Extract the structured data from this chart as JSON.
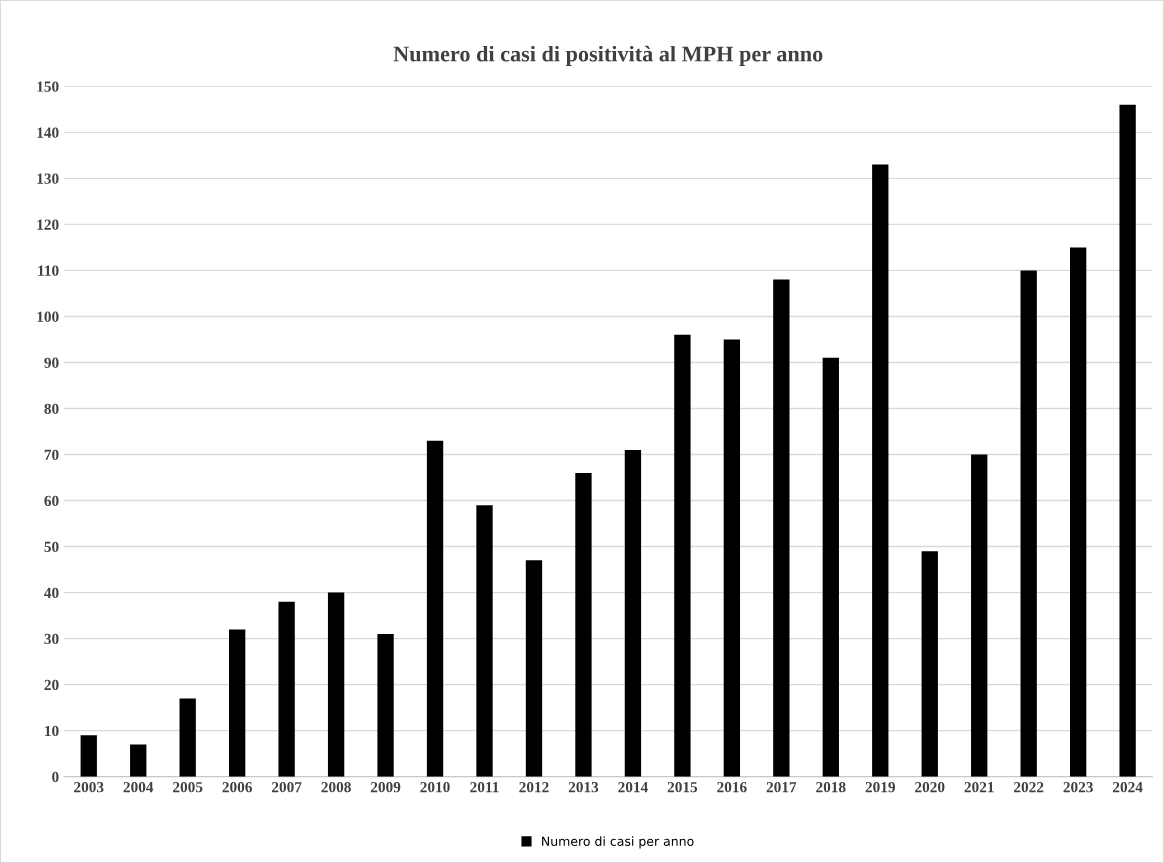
{
  "chart_data": {
    "type": "bar",
    "title": "Numero di casi di positività al MPH per anno",
    "categories": [
      "2003",
      "2004",
      "2005",
      "2006",
      "2007",
      "2008",
      "2009",
      "2010",
      "2011",
      "2012",
      "2013",
      "2014",
      "2015",
      "2016",
      "2017",
      "2018",
      "2019",
      "2020",
      "2021",
      "2022",
      "2023",
      "2024"
    ],
    "series": [
      {
        "name": "Numero di casi per anno",
        "color": "#000000",
        "values": [
          9,
          7,
          17,
          32,
          38,
          40,
          31,
          73,
          59,
          47,
          66,
          71,
          96,
          95,
          108,
          91,
          133,
          49,
          70,
          110,
          115,
          146
        ]
      }
    ],
    "ylim": [
      0,
      150
    ],
    "yticks": [
      0,
      10,
      20,
      30,
      40,
      50,
      60,
      70,
      80,
      90,
      100,
      110,
      120,
      130,
      140,
      150
    ],
    "grid": "y",
    "legend": "bottom"
  }
}
